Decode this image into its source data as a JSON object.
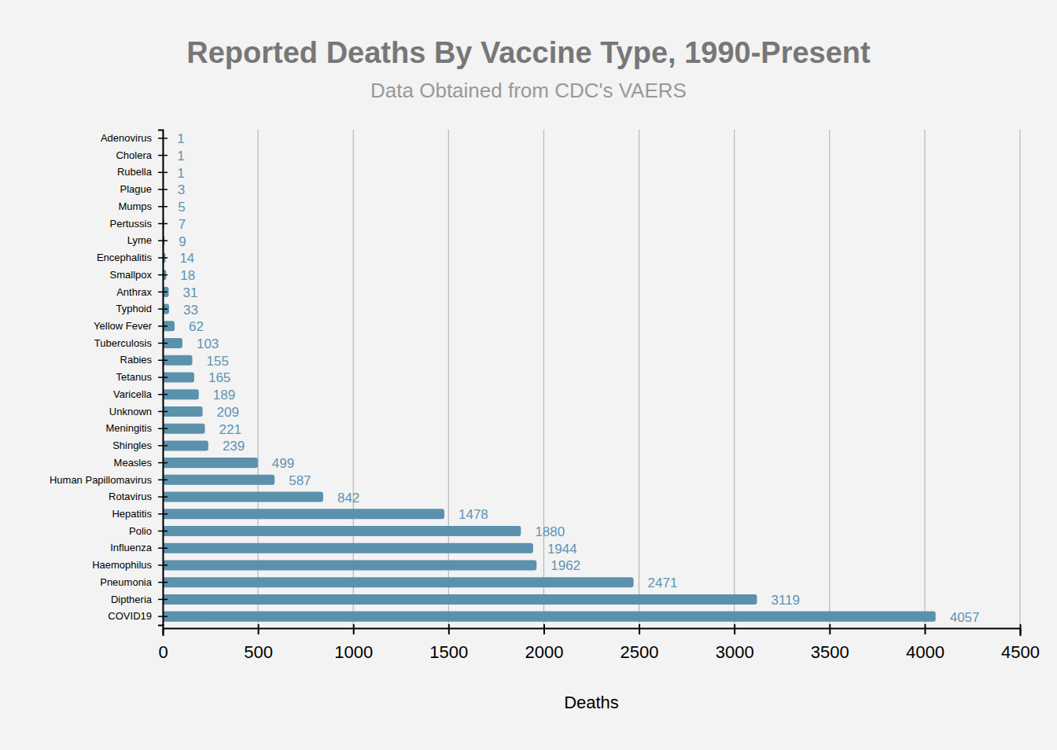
{
  "chart_data": {
    "type": "bar",
    "orientation": "horizontal",
    "title": "Reported Deaths By Vaccine Type, 1990-Present",
    "subtitle": "Data Obtained from CDC's VAERS",
    "x_label": "Deaths",
    "categories": [
      "Adenovirus",
      "Cholera",
      "Rubella",
      "Plague",
      "Mumps",
      "Pertussis",
      "Lyme",
      "Encephalitis",
      "Smallpox",
      "Anthrax",
      "Typhoid",
      "Yellow Fever",
      "Tuberculosis",
      "Rabies",
      "Tetanus",
      "Varicella",
      "Unknown",
      "Meningitis",
      "Shingles",
      "Measles",
      "Human Papillomavirus",
      "Rotavirus",
      "Hepatitis",
      "Polio",
      "Influenza",
      "Haemophilus",
      "Pneumonia",
      "Diptheria",
      "COVID19"
    ],
    "values": [
      1,
      1,
      1,
      3,
      5,
      7,
      9,
      14,
      18,
      31,
      33,
      62,
      103,
      155,
      165,
      189,
      209,
      221,
      239,
      499,
      587,
      842,
      1478,
      1880,
      1944,
      1962,
      2471,
      3119,
      4057
    ],
    "color": "#5b91ad",
    "xlim": [
      0,
      4500
    ],
    "xticks": [
      0,
      500,
      1000,
      1500,
      2000,
      2500,
      3000,
      3500,
      4000,
      4500
    ],
    "grid": true,
    "data_labels": true
  }
}
